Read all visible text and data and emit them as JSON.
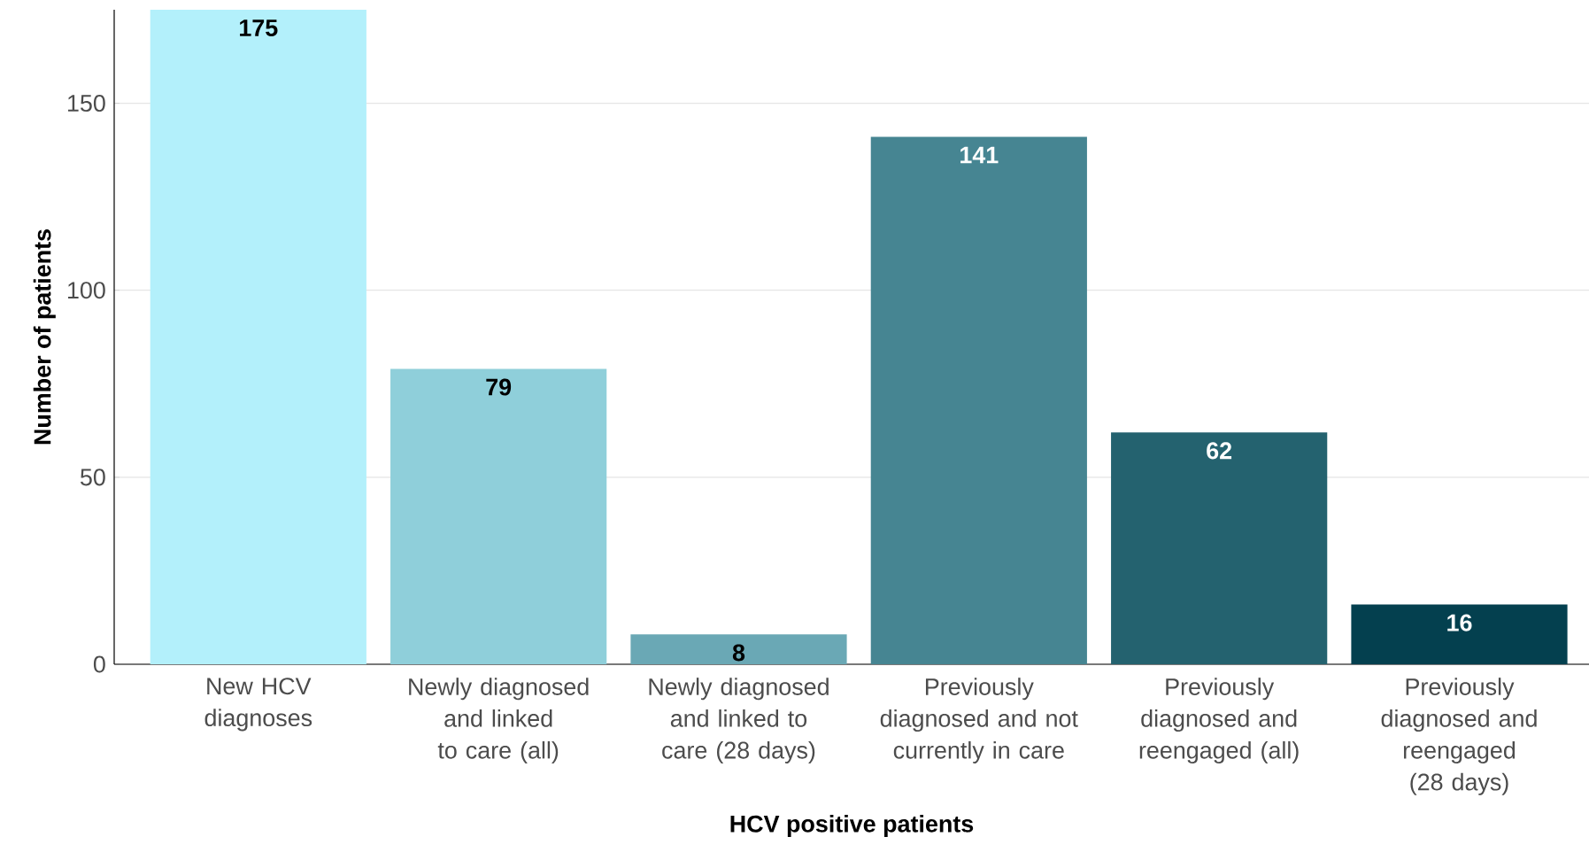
{
  "chart_data": {
    "type": "bar",
    "xlabel": "HCV positive patients",
    "ylabel": "Number of patients",
    "categories": [
      "New HCV diagnoses",
      "Newly diagnosed and linked to care (all)",
      "Newly diagnosed and linked to care (28 days)",
      "Previously diagnosed and not currently in care",
      "Previously diagnosed and reengaged (all)",
      "Previously diagnosed and reengaged (28 days)"
    ],
    "values": [
      175,
      79,
      8,
      141,
      62,
      16
    ],
    "colors": [
      "#b3f0fb",
      "#8fcfda",
      "#6aa8b5",
      "#468592",
      "#24626f",
      "#04404f"
    ],
    "ylim": [
      0,
      175
    ],
    "yticks": [
      0,
      50,
      100,
      150
    ],
    "grid": "y",
    "data_labels": true
  }
}
